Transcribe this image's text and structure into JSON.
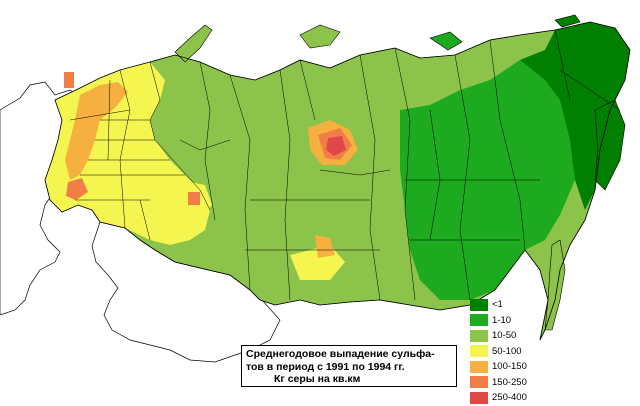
{
  "caption": {
    "line1": "Среднегодовое выпадение сульфа-",
    "line2": "тов в период с 1991 по 1994 гг.",
    "line3": "Кг серы на кв.км"
  },
  "legend": {
    "items": [
      {
        "label": "<1",
        "color": "#007f00"
      },
      {
        "label": "1-10",
        "color": "#1eaa1e"
      },
      {
        "label": "10-50",
        "color": "#8cc34b"
      },
      {
        "label": "50-100",
        "color": "#f5f550"
      },
      {
        "label": "100-150",
        "color": "#f5b040"
      },
      {
        "label": "150-250",
        "color": "#f07e46"
      },
      {
        "label": "250-400",
        "color": "#e04848"
      }
    ]
  },
  "map": {
    "background": "#ffffff",
    "border_color": "#000000",
    "outside_fill": "#ffffff"
  }
}
